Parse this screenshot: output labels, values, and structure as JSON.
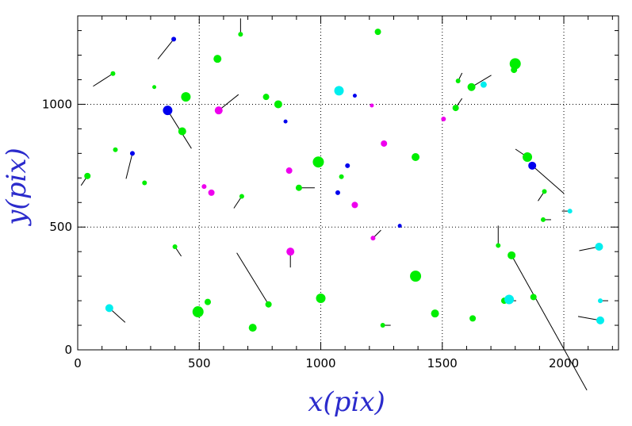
{
  "chart_data": {
    "type": "scatter",
    "title": "",
    "xlabel": "x(pix)",
    "ylabel": "y(pix)",
    "axis_label_color": "#2b2bcc",
    "xlim": [
      0,
      2225
    ],
    "ylim": [
      0,
      1360
    ],
    "xticks": [
      0,
      500,
      1000,
      1500,
      2000
    ],
    "yticks": [
      0,
      500,
      1000
    ],
    "grid": true,
    "grid_style": "dotted",
    "colors": {
      "green": "#00ee00",
      "blue": "#0000ee",
      "magenta": "#ee00ee",
      "cyan": "#00eeee"
    },
    "points": [
      {
        "x": 40,
        "y": 708,
        "r": 4,
        "c": "green",
        "dx": -8,
        "dy": -12
      },
      {
        "x": 145,
        "y": 1125,
        "r": 3,
        "c": "green",
        "dx": -25,
        "dy": -16
      },
      {
        "x": 155,
        "y": 815,
        "r": 3,
        "c": "green"
      },
      {
        "x": 130,
        "y": 170,
        "r": 5,
        "c": "cyan",
        "dx": 20,
        "dy": -18
      },
      {
        "x": 225,
        "y": 800,
        "r": 3,
        "c": "blue",
        "dx": -8,
        "dy": -32
      },
      {
        "x": 275,
        "y": 680,
        "r": 3,
        "c": "green"
      },
      {
        "x": 315,
        "y": 1070,
        "r": 2.5,
        "c": "green"
      },
      {
        "x": 370,
        "y": 975,
        "r": 6,
        "c": "blue",
        "dx": 30,
        "dy": -48
      },
      {
        "x": 395,
        "y": 1265,
        "r": 3,
        "c": "blue",
        "dx": -20,
        "dy": -25
      },
      {
        "x": 400,
        "y": 420,
        "r": 3,
        "c": "green",
        "dx": 8,
        "dy": -12
      },
      {
        "x": 430,
        "y": 890,
        "r": 5,
        "c": "green"
      },
      {
        "x": 445,
        "y": 1030,
        "r": 6,
        "c": "green"
      },
      {
        "x": 495,
        "y": 155,
        "r": 7,
        "c": "green"
      },
      {
        "x": 520,
        "y": 665,
        "r": 3,
        "c": "magenta"
      },
      {
        "x": 535,
        "y": 195,
        "r": 4,
        "c": "green"
      },
      {
        "x": 550,
        "y": 640,
        "r": 4,
        "c": "magenta"
      },
      {
        "x": 575,
        "y": 1185,
        "r": 5,
        "c": "green"
      },
      {
        "x": 580,
        "y": 975,
        "r": 5,
        "c": "magenta",
        "dx": 25,
        "dy": 20
      },
      {
        "x": 670,
        "y": 1285,
        "r": 3,
        "c": "green",
        "dx": 0,
        "dy": 20
      },
      {
        "x": 675,
        "y": 625,
        "r": 3,
        "c": "green",
        "dx": -10,
        "dy": -15
      },
      {
        "x": 720,
        "y": 90,
        "r": 5,
        "c": "green"
      },
      {
        "x": 775,
        "y": 1030,
        "r": 4,
        "c": "green"
      },
      {
        "x": 785,
        "y": 185,
        "r": 4,
        "c": "green",
        "dx": -40,
        "dy": 65
      },
      {
        "x": 825,
        "y": 1000,
        "r": 5,
        "c": "green"
      },
      {
        "x": 855,
        "y": 930,
        "r": 2.5,
        "c": "blue"
      },
      {
        "x": 870,
        "y": 730,
        "r": 4,
        "c": "magenta"
      },
      {
        "x": 875,
        "y": 400,
        "r": 5,
        "c": "magenta",
        "dx": 0,
        "dy": -20
      },
      {
        "x": 910,
        "y": 660,
        "r": 4,
        "c": "green",
        "dx": 20,
        "dy": 0
      },
      {
        "x": 990,
        "y": 765,
        "r": 7,
        "c": "green"
      },
      {
        "x": 1000,
        "y": 210,
        "r": 6,
        "c": "green"
      },
      {
        "x": 1070,
        "y": 640,
        "r": 3,
        "c": "blue"
      },
      {
        "x": 1075,
        "y": 1055,
        "r": 6,
        "c": "cyan"
      },
      {
        "x": 1085,
        "y": 705,
        "r": 3,
        "c": "green"
      },
      {
        "x": 1110,
        "y": 750,
        "r": 3,
        "c": "blue"
      },
      {
        "x": 1140,
        "y": 1035,
        "r": 2.5,
        "c": "blue"
      },
      {
        "x": 1140,
        "y": 590,
        "r": 4,
        "c": "magenta"
      },
      {
        "x": 1210,
        "y": 995,
        "r": 2.5,
        "c": "magenta"
      },
      {
        "x": 1215,
        "y": 455,
        "r": 3,
        "c": "magenta",
        "dx": 10,
        "dy": 10
      },
      {
        "x": 1235,
        "y": 1295,
        "r": 4,
        "c": "green"
      },
      {
        "x": 1255,
        "y": 100,
        "r": 3,
        "c": "green",
        "dx": 10,
        "dy": 0
      },
      {
        "x": 1260,
        "y": 840,
        "r": 4,
        "c": "magenta"
      },
      {
        "x": 1325,
        "y": 505,
        "r": 2.5,
        "c": "blue"
      },
      {
        "x": 1390,
        "y": 785,
        "r": 5,
        "c": "green"
      },
      {
        "x": 1390,
        "y": 300,
        "r": 7,
        "c": "green"
      },
      {
        "x": 1470,
        "y": 148,
        "r": 5,
        "c": "green"
      },
      {
        "x": 1505,
        "y": 940,
        "r": 3,
        "c": "magenta"
      },
      {
        "x": 1555,
        "y": 985,
        "r": 4,
        "c": "green",
        "dx": 8,
        "dy": 12
      },
      {
        "x": 1565,
        "y": 1095,
        "r": 3,
        "c": "green",
        "dx": 5,
        "dy": 10
      },
      {
        "x": 1620,
        "y": 1070,
        "r": 5,
        "c": "green",
        "dx": 25,
        "dy": 15
      },
      {
        "x": 1625,
        "y": 128,
        "r": 4,
        "c": "green"
      },
      {
        "x": 1670,
        "y": 1080,
        "r": 4,
        "c": "cyan"
      },
      {
        "x": 1730,
        "y": 425,
        "r": 3,
        "c": "green",
        "dx": 0,
        "dy": 25
      },
      {
        "x": 1755,
        "y": 200,
        "r": 4,
        "c": "green",
        "dx": 15,
        "dy": 0
      },
      {
        "x": 1775,
        "y": 205,
        "r": 6,
        "c": "cyan"
      },
      {
        "x": 1785,
        "y": 385,
        "r": 5,
        "c": "green",
        "dx": 95,
        "dy": -170
      },
      {
        "x": 1795,
        "y": 1140,
        "r": 4,
        "c": "green"
      },
      {
        "x": 1800,
        "y": 1165,
        "r": 7,
        "c": "green"
      },
      {
        "x": 1850,
        "y": 785,
        "r": 6,
        "c": "green",
        "dx": -15,
        "dy": 10
      },
      {
        "x": 1870,
        "y": 750,
        "r": 5,
        "c": "blue",
        "dx": 40,
        "dy": -35
      },
      {
        "x": 1875,
        "y": 215,
        "r": 4,
        "c": "green"
      },
      {
        "x": 1915,
        "y": 530,
        "r": 3,
        "c": "green",
        "dx": 10,
        "dy": 0
      },
      {
        "x": 1920,
        "y": 645,
        "r": 3,
        "c": "green",
        "dx": -8,
        "dy": -12
      },
      {
        "x": 2025,
        "y": 565,
        "r": 3,
        "c": "cyan",
        "dx": -10,
        "dy": 0
      },
      {
        "x": 2145,
        "y": 420,
        "r": 5,
        "c": "cyan",
        "dx": -25,
        "dy": -5
      },
      {
        "x": 2150,
        "y": 200,
        "r": 3,
        "c": "cyan",
        "dx": 10,
        "dy": 0
      },
      {
        "x": 2150,
        "y": 120,
        "r": 5,
        "c": "cyan",
        "dx": -28,
        "dy": 5
      }
    ]
  }
}
